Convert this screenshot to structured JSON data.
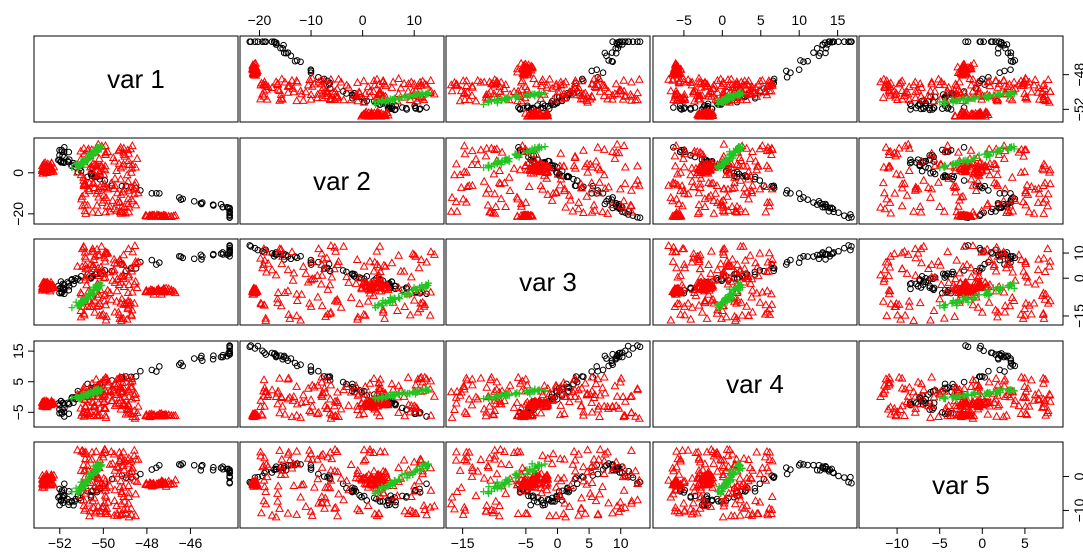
{
  "chart_data": {
    "type": "scatter-matrix",
    "variables": [
      "var 1",
      "var 2",
      "var 3",
      "var 4",
      "var 5"
    ],
    "ranges": [
      [
        -53,
        -44
      ],
      [
        -23,
        15
      ],
      [
        -17,
        14
      ],
      [
        -8.5,
        17
      ],
      [
        -14,
        9
      ]
    ],
    "ticks": [
      [
        -52,
        -50,
        -48,
        -46
      ],
      [
        -20,
        -10,
        0,
        10
      ],
      [
        -15,
        -5,
        0,
        5,
        10
      ],
      [
        -5,
        0,
        5,
        10,
        15
      ],
      [
        -10,
        -5,
        0,
        5
      ]
    ],
    "tick_labels": [
      [
        "−52",
        "−50",
        "−48",
        "−46"
      ],
      [
        "−20",
        "−10",
        "0",
        "10"
      ],
      [
        "−15",
        "−5",
        "0",
        "5",
        "10"
      ],
      [
        "−5",
        "0",
        "5",
        "10",
        "15"
      ],
      [
        "−10",
        "−5",
        "0",
        "5"
      ]
    ],
    "axis_ticks": {
      "top": [
        {
          "col": 1,
          "var": 1,
          "labels": [
            "−20",
            "−10",
            "0",
            "10"
          ]
        },
        {
          "col": 3,
          "var": 3,
          "labels": [
            "−5",
            "0",
            "5",
            "10",
            "15"
          ]
        }
      ],
      "bottom": [
        {
          "col": 0,
          "var": 0,
          "labels": [
            "−52",
            "−50",
            "−48",
            "−46"
          ]
        },
        {
          "col": 2,
          "var": 2,
          "labels": [
            "−15",
            "−5",
            "0",
            "5",
            "10"
          ]
        },
        {
          "col": 4,
          "var": 4,
          "labels": [
            "−10",
            "−5",
            "0",
            "5"
          ]
        }
      ],
      "left": [
        {
          "row": 1,
          "var": 1,
          "labels": [
            "−20",
            "0"
          ]
        },
        {
          "row": 3,
          "var": 3,
          "labels": [
            "−5",
            "5",
            "15"
          ]
        }
      ],
      "right": [
        {
          "row": 0,
          "var": 0,
          "labels": [
            "−52",
            "−48"
          ]
        },
        {
          "row": 2,
          "var": 2,
          "labels": [
            "−15",
            "0",
            "10"
          ]
        },
        {
          "row": 4,
          "var": 4,
          "labels": [
            "−10",
            "0"
          ]
        }
      ]
    },
    "series": [
      {
        "group": "1",
        "marker": "circle",
        "color": "#000000",
        "n": 70
      },
      {
        "group": "2",
        "marker": "triangle",
        "color": "#ff0000",
        "n": 230
      },
      {
        "group": "3",
        "marker": "plus",
        "color": "#22c422",
        "n": 45
      }
    ],
    "grid": false,
    "legend": "none"
  }
}
